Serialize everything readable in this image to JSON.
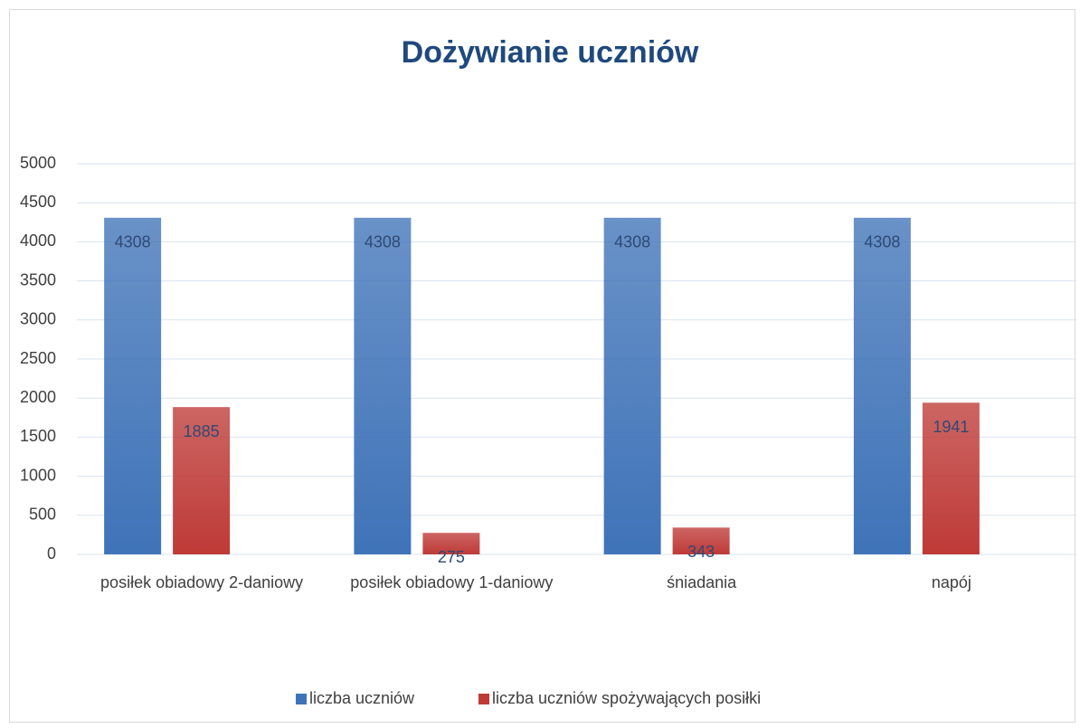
{
  "chart_data": {
    "type": "bar",
    "title": "Dożywianie uczniów",
    "categories": [
      "posiłek obiadowy 2-daniowy",
      "posiłek obiadowy 1-daniowy",
      "śniadania",
      "napój"
    ],
    "series": [
      {
        "name": "liczba uczniów",
        "color": "#3f73b8",
        "values": [
          4308,
          4308,
          4308,
          4308
        ]
      },
      {
        "name": "liczba uczniów spożywających posiłki",
        "color": "#be3a37",
        "values": [
          1885,
          275,
          343,
          1941
        ]
      }
    ],
    "ylim": [
      0,
      5000
    ],
    "yticks": [
      0,
      500,
      1000,
      1500,
      2000,
      2500,
      3000,
      3500,
      4000,
      4500,
      5000
    ],
    "grid": true,
    "legend": "bottom"
  }
}
